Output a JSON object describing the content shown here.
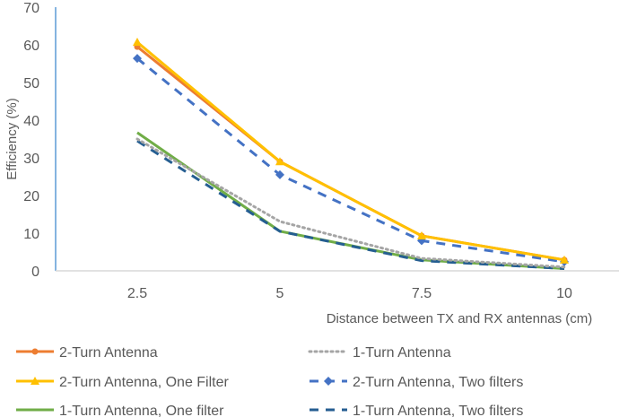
{
  "chart_data": {
    "type": "line",
    "title": "",
    "xlabel": "Distance between TX and RX antennas (cm)",
    "ylabel": "Efficiency (%)",
    "categories": [
      "2.5",
      "5",
      "7.5",
      "10"
    ],
    "ylim": [
      0,
      70
    ],
    "yticks": [
      "0",
      "10",
      "20",
      "30",
      "40",
      "50",
      "60",
      "70"
    ],
    "grid": false,
    "legend": "bottom",
    "series": [
      {
        "name": "2-Turn Antenna",
        "values": [
          59.5,
          29,
          9.3,
          2.9
        ],
        "color": "#ED7D31",
        "dash": "",
        "marker": "circle"
      },
      {
        "name": "1-Turn Antenna",
        "values": [
          35,
          13.1,
          3.3,
          1
        ],
        "color": "#A5A5A5",
        "dash": "2,4",
        "marker": ""
      },
      {
        "name": "2-Turn Antenna, One Filter",
        "values": [
          60.7,
          29,
          9.3,
          2.9
        ],
        "color": "#FFC000",
        "dash": "",
        "marker": "triangle"
      },
      {
        "name": "2-Turn Antenna, Two filters",
        "values": [
          56.4,
          25.5,
          8,
          2.4
        ],
        "color": "#4472C4",
        "dash": "10,8",
        "marker": "diamond"
      },
      {
        "name": "1-Turn Antenna, One filter",
        "values": [
          36.7,
          10.5,
          2.9,
          0.6
        ],
        "color": "#70AD47",
        "dash": "",
        "marker": ""
      },
      {
        "name": "1-Turn Antenna, Two filters",
        "values": [
          34.5,
          10.5,
          2.7,
          0.6
        ],
        "color": "#255E91",
        "dash": "10,8",
        "marker": ""
      }
    ]
  }
}
